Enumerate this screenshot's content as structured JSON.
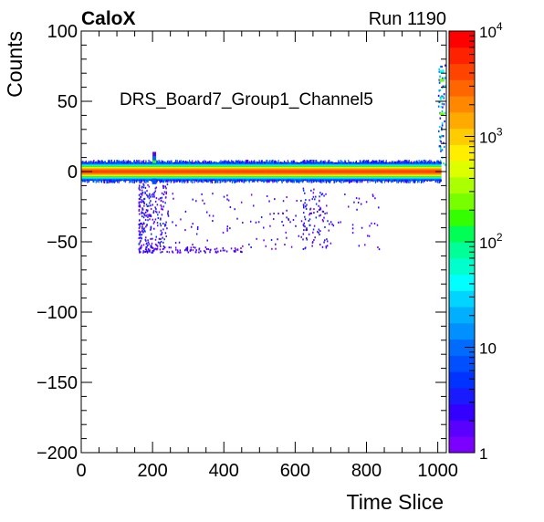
{
  "header": {
    "brand": "CaloX",
    "run": "Run 1190"
  },
  "chart_data": {
    "type": "heatmap",
    "title": "DRS_Board7_Group1_Channel5",
    "xlabel": "Time Slice",
    "ylabel": "Counts",
    "xlim": [
      0,
      1024
    ],
    "ylim": [
      -200,
      100
    ],
    "x_ticks": [
      0,
      200,
      400,
      600,
      800,
      1000
    ],
    "y_ticks": [
      -200,
      -150,
      -100,
      -50,
      0,
      50,
      100
    ],
    "x_tick_labels": [
      "0",
      "200",
      "400",
      "600",
      "800",
      "1000"
    ],
    "y_tick_labels": [
      "−200",
      "−150",
      "−100",
      "−50",
      "0",
      "50",
      "100"
    ],
    "colorbar": {
      "scale": "log",
      "range": [
        1,
        10000
      ],
      "tick_values": [
        1,
        10,
        100,
        1000,
        10000
      ],
      "tick_labels": [
        "1",
        "10",
        "10^2",
        "10^3",
        "10^4"
      ],
      "palette": [
        "#7b00ff",
        "#5a00ff",
        "#3300ff",
        "#1a1aff",
        "#0033ff",
        "#0050ff",
        "#006cff",
        "#0090ff",
        "#00b0ff",
        "#00d4ff",
        "#00ffff",
        "#00ffcc",
        "#00ff99",
        "#00ff55",
        "#33ff00",
        "#77ff00",
        "#aaff00",
        "#ddff00",
        "#ffee00",
        "#ffcc00",
        "#ffaa00",
        "#ff8800",
        "#ff6600",
        "#ff4400",
        "#ff2200",
        "#ff0000"
      ]
    },
    "features": {
      "baseline": {
        "x_range": [
          0,
          1010
        ],
        "center": 0,
        "half_width": 5
      },
      "pulse_peak": {
        "x": 205,
        "y": 12
      },
      "tail_rise": {
        "x_range": [
          1000,
          1024
        ],
        "y_range": [
          40,
          78
        ]
      },
      "negative_clusters": [
        {
          "x_range": [
            160,
            240
          ],
          "y_range": [
            -57,
            -8
          ]
        },
        {
          "x_range": [
            620,
            690
          ],
          "y_range": [
            -55,
            -10
          ]
        }
      ]
    }
  }
}
